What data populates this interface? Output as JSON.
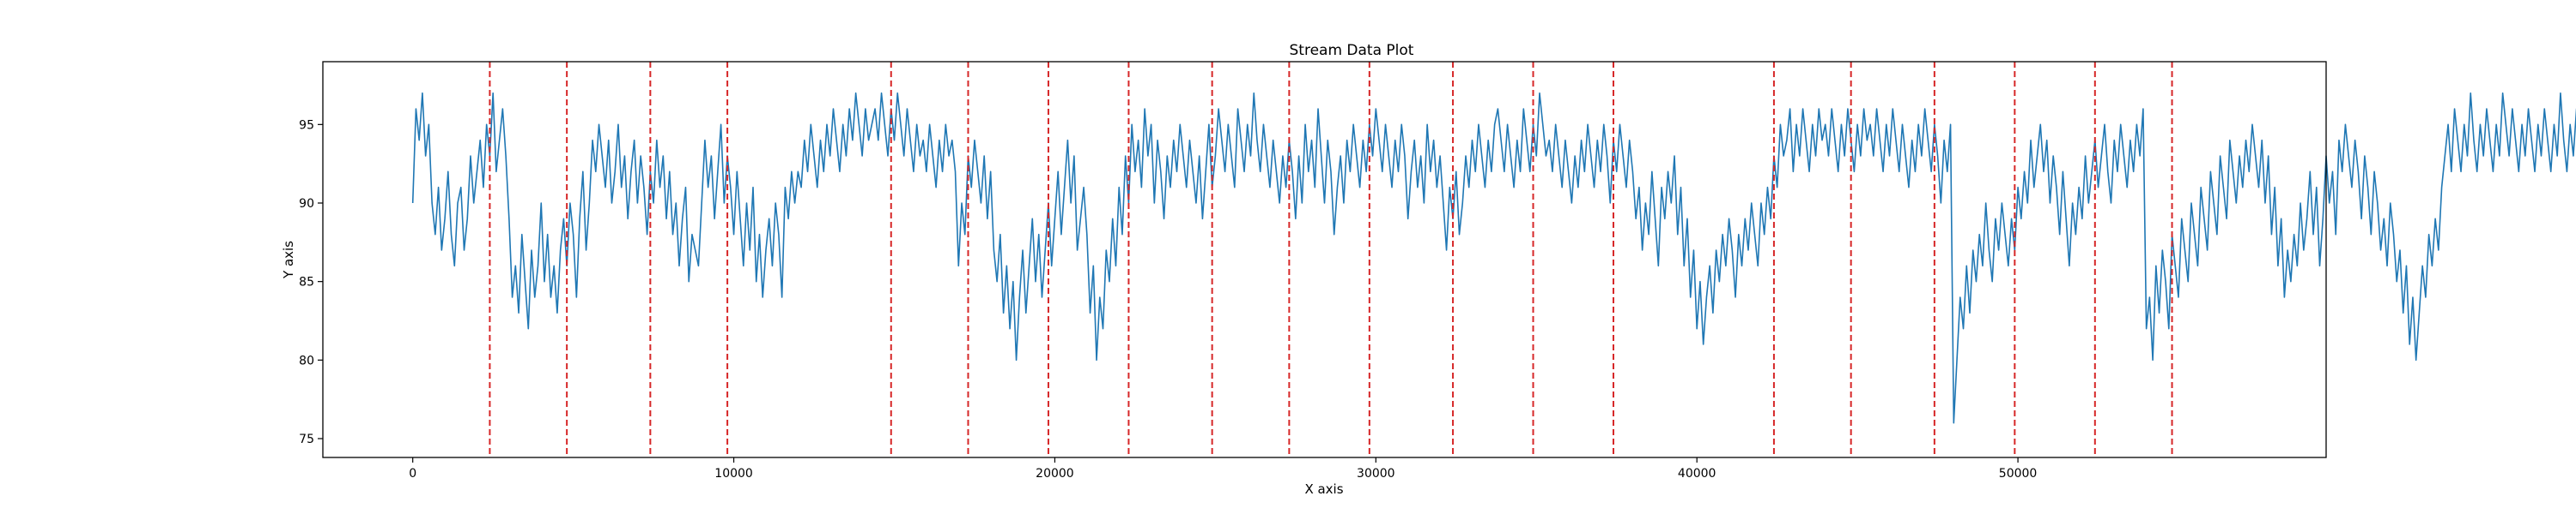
{
  "chart_data": {
    "type": "line",
    "title": "Stream Data Plot",
    "xlabel": "X axis",
    "ylabel": "Y axis",
    "xlim": [
      -2800,
      59600
    ],
    "ylim": [
      73.8,
      99
    ],
    "x_ticks": [
      0,
      10000,
      20000,
      30000,
      40000,
      50000
    ],
    "y_ticks": [
      75,
      80,
      85,
      90,
      95
    ],
    "grid": false,
    "legend": "none",
    "series_color": "#1f77b4",
    "vline_color": "#d62728",
    "sample_step": 100,
    "series": [
      {
        "values": [
          90,
          96,
          94,
          97,
          93,
          95,
          90,
          88,
          91,
          87,
          89,
          92,
          88,
          86,
          90,
          91,
          87,
          89,
          93,
          90,
          92,
          94,
          91,
          95,
          93,
          97,
          92,
          94,
          96,
          93,
          89,
          84,
          86,
          83,
          88,
          85,
          82,
          87,
          84,
          86,
          90,
          85,
          88,
          84,
          86,
          83,
          87,
          89,
          86,
          90,
          88,
          84,
          89,
          92,
          87,
          90,
          94,
          92,
          95,
          93,
          91,
          94,
          90,
          92,
          95,
          91,
          93,
          89,
          92,
          94,
          90,
          93,
          91,
          88,
          92,
          90,
          94,
          91,
          93,
          89,
          92,
          88,
          90,
          86,
          89,
          91,
          85,
          88,
          87,
          86,
          90,
          94,
          91,
          93,
          89,
          92,
          95,
          90,
          93,
          91,
          88,
          92,
          89,
          86,
          90,
          87,
          91,
          85,
          88,
          84,
          87,
          89,
          86,
          90,
          88,
          84,
          91,
          89,
          92,
          90,
          92,
          91,
          94,
          92,
          95,
          93,
          91,
          94,
          92,
          95,
          93,
          96,
          94,
          92,
          95,
          93,
          96,
          94,
          97,
          95,
          93,
          96,
          94,
          95,
          96,
          94,
          97,
          95,
          93,
          96,
          94,
          97,
          95,
          93,
          96,
          94,
          92,
          95,
          93,
          94,
          92,
          95,
          93,
          91,
          94,
          92,
          95,
          93,
          94,
          92,
          86,
          90,
          88,
          93,
          91,
          94,
          92,
          90,
          93,
          89,
          92,
          87,
          85,
          88,
          83,
          86,
          82,
          85,
          80,
          84,
          87,
          83,
          86,
          89,
          85,
          88,
          84,
          87,
          90,
          86,
          89,
          92,
          88,
          91,
          94,
          90,
          93,
          87,
          89,
          91,
          88,
          83,
          86,
          80,
          84,
          82,
          87,
          85,
          89,
          86,
          91,
          88,
          93,
          90,
          95,
          92,
          94,
          91,
          96,
          93,
          95,
          90,
          94,
          92,
          89,
          93,
          91,
          94,
          92,
          95,
          93,
          91,
          94,
          92,
          90,
          93,
          89,
          92,
          95,
          91,
          93,
          96,
          94,
          92,
          95,
          93,
          91,
          96,
          94,
          92,
          95,
          93,
          97,
          94,
          92,
          95,
          93,
          91,
          94,
          92,
          90,
          93,
          91,
          94,
          92,
          89,
          93,
          90,
          95,
          92,
          94,
          91,
          96,
          93,
          90,
          94,
          92,
          88,
          91,
          93,
          90,
          94,
          92,
          95,
          93,
          91,
          94,
          92,
          95,
          93,
          96,
          94,
          92,
          95,
          93,
          91,
          94,
          92,
          95,
          93,
          89,
          92,
          94,
          91,
          93,
          90,
          95,
          92,
          94,
          91,
          93,
          90,
          87,
          91,
          89,
          92,
          88,
          90,
          93,
          91,
          94,
          92,
          95,
          93,
          91,
          94,
          92,
          95,
          96,
          94,
          92,
          95,
          93,
          91,
          94,
          92,
          96,
          94,
          92,
          95,
          93,
          97,
          95,
          93,
          94,
          92,
          95,
          93,
          91,
          94,
          92,
          90,
          93,
          91,
          94,
          92,
          95,
          93,
          91,
          94,
          92,
          95,
          93,
          90,
          94,
          92,
          95,
          93,
          91,
          94,
          92,
          89,
          91,
          87,
          90,
          88,
          92,
          89,
          86,
          91,
          89,
          92,
          90,
          93,
          88,
          91,
          86,
          89,
          84,
          87,
          82,
          85,
          81,
          84,
          86,
          83,
          87,
          85,
          88,
          86,
          89,
          87,
          84,
          88,
          86,
          89,
          87,
          90,
          88,
          86,
          90,
          88,
          91,
          89,
          93,
          91,
          95,
          93,
          94,
          96,
          92,
          95,
          93,
          96,
          94,
          92,
          95,
          93,
          96,
          94,
          95,
          93,
          96,
          94,
          92,
          95,
          93,
          96,
          94,
          92,
          95,
          93,
          96,
          94,
          95,
          93,
          96,
          94,
          92,
          95,
          93,
          96,
          94,
          92,
          95,
          93,
          91,
          94,
          92,
          95,
          93,
          96,
          94,
          92,
          95,
          93,
          90,
          94,
          92,
          95,
          76,
          80,
          84,
          82,
          86,
          83,
          87,
          85,
          88,
          86,
          90,
          87,
          85,
          89,
          87,
          90,
          88,
          86,
          89,
          87,
          91,
          89,
          92,
          90,
          94,
          91,
          93,
          95,
          92,
          94,
          90,
          93,
          91,
          88,
          92,
          89,
          86,
          90,
          88,
          91,
          89,
          93,
          90,
          92,
          94,
          91,
          93,
          95,
          92,
          90,
          94,
          92,
          95,
          93,
          91,
          94,
          92,
          95,
          93,
          96,
          82,
          84,
          80,
          86,
          83,
          87,
          85,
          82,
          88,
          86,
          84,
          89,
          87,
          85,
          90,
          88,
          86,
          91,
          89,
          87,
          92,
          90,
          88,
          93,
          91,
          89,
          94,
          92,
          90,
          93,
          91,
          94,
          92,
          95,
          93,
          91,
          94,
          90,
          93,
          88,
          91,
          86,
          89,
          84,
          87,
          85,
          88,
          86,
          90,
          87,
          89,
          92,
          88,
          91,
          86,
          89,
          93,
          90,
          92,
          88,
          94,
          92,
          95,
          93,
          91,
          94,
          92,
          89,
          93,
          91,
          88,
          92,
          90,
          87,
          89,
          86,
          90,
          88,
          85,
          87,
          83,
          86,
          81,
          84,
          80,
          83,
          86,
          84,
          88,
          86,
          89,
          87,
          91,
          93,
          95,
          92,
          96,
          94,
          92,
          95,
          93,
          97,
          94,
          92,
          95,
          93,
          96,
          94,
          92,
          95,
          93,
          97,
          95,
          93,
          96,
          94,
          92,
          95,
          93,
          96,
          94,
          92,
          95,
          93,
          96,
          94,
          92,
          95,
          93,
          97,
          94,
          92,
          95,
          93,
          96,
          94,
          95,
          93,
          96,
          94,
          92,
          95,
          93,
          96,
          94,
          92,
          95,
          93,
          96,
          95,
          93,
          96,
          94,
          92,
          95,
          93,
          96,
          94
        ]
      }
    ],
    "vlines": [
      2400,
      4800,
      7400,
      9800,
      14900,
      17300,
      19800,
      22300,
      24900,
      27300,
      29800,
      32400,
      34900,
      37400,
      42400,
      44800,
      47400,
      49900,
      52400,
      54800
    ]
  }
}
